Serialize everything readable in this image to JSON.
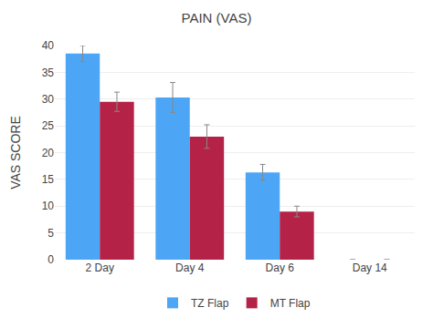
{
  "chart_data": {
    "type": "bar",
    "title": "PAIN (VAS)",
    "ylabel": "VAS SCORE",
    "categories": [
      "2 Day",
      "Day 4",
      "Day 6",
      "Day 14"
    ],
    "series": [
      {
        "name": "TZ Flap",
        "color": "#4da6f5",
        "values": [
          38.5,
          30.3,
          16.3,
          0
        ],
        "errors": [
          1.5,
          2.8,
          1.5,
          0
        ]
      },
      {
        "name": "MT Flap",
        "color": "#b52247",
        "values": [
          29.5,
          23.0,
          9.0,
          0
        ],
        "errors": [
          1.8,
          2.2,
          1.0,
          0
        ]
      }
    ],
    "ylim": [
      0,
      40
    ],
    "yticks": [
      0,
      5,
      10,
      15,
      20,
      25,
      30,
      35,
      40
    ],
    "grid": true,
    "legend": "bottom"
  }
}
